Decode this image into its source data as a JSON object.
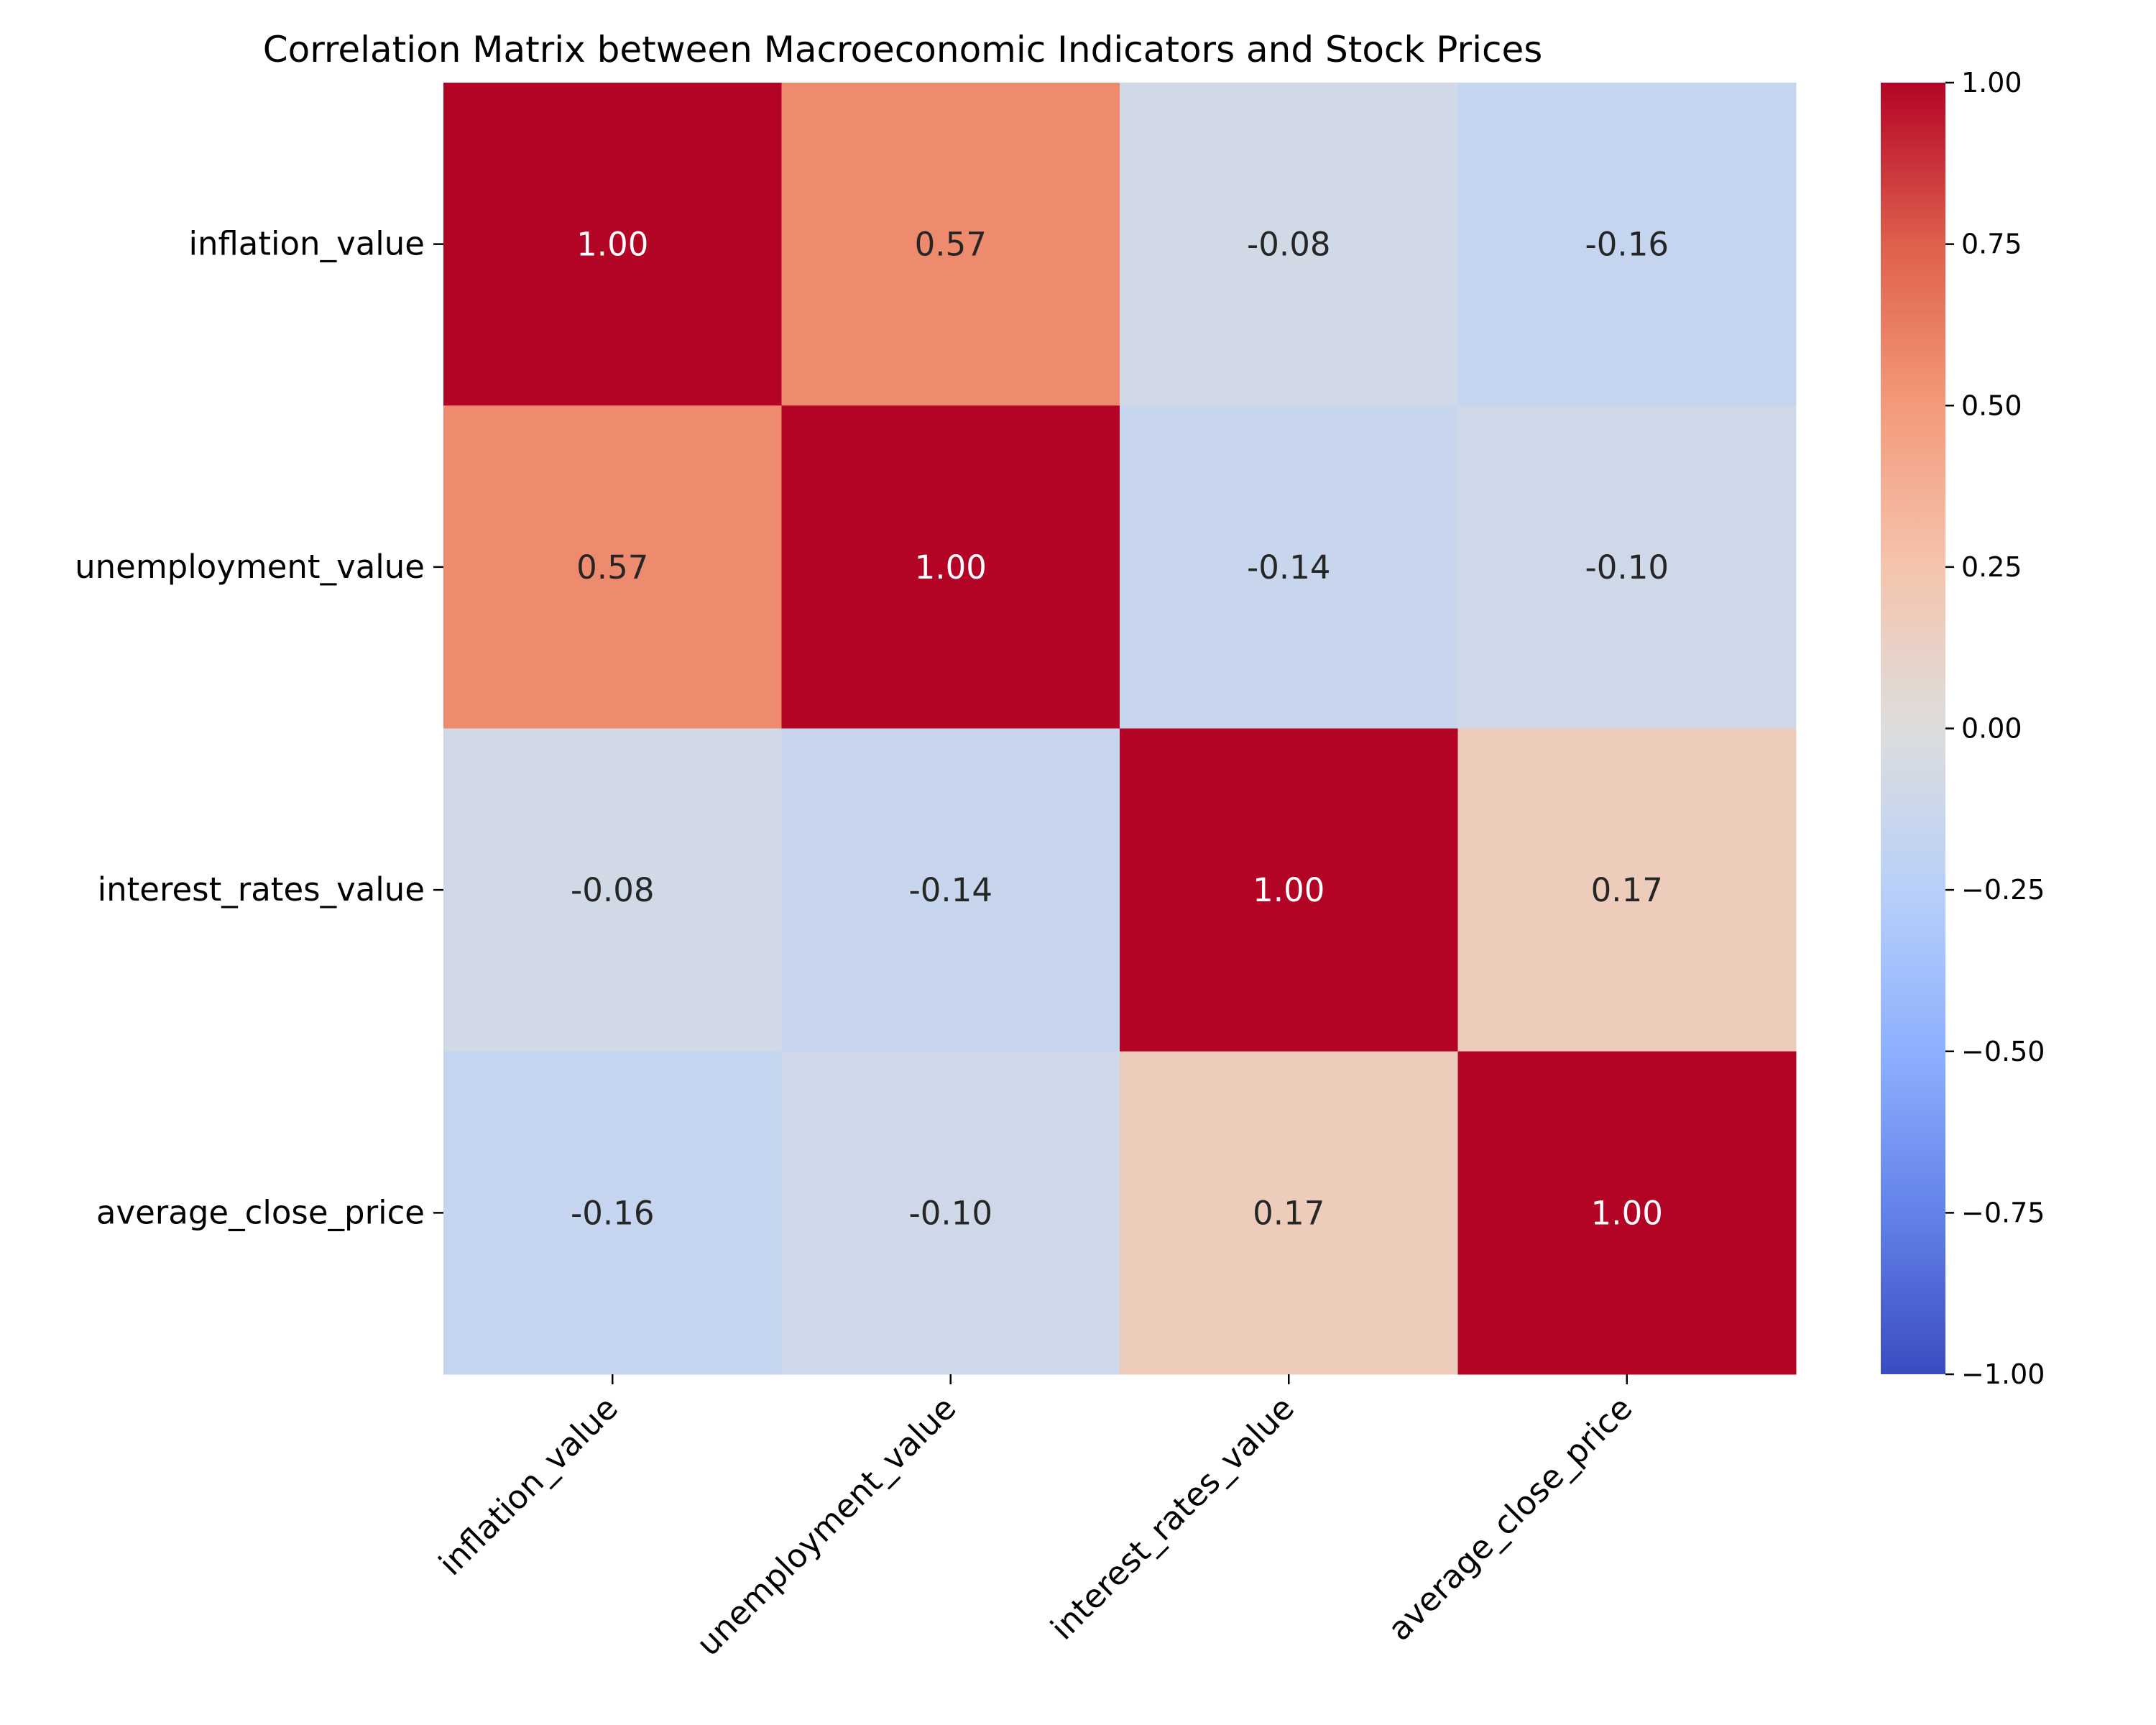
{
  "chart_data": {
    "type": "heatmap",
    "title": "Correlation Matrix between Macroeconomic Indicators and Stock Prices",
    "rows": [
      "inflation_value",
      "unemployment_value",
      "interest_rates_value",
      "average_close_price"
    ],
    "cols": [
      "inflation_value",
      "unemployment_value",
      "interest_rates_value",
      "average_close_price"
    ],
    "values": [
      [
        1.0,
        0.57,
        -0.08,
        -0.16
      ],
      [
        0.57,
        1.0,
        -0.14,
        -0.1
      ],
      [
        -0.08,
        -0.14,
        1.0,
        0.17
      ],
      [
        -0.16,
        -0.1,
        0.17,
        1.0
      ]
    ],
    "labels": [
      [
        "1.00",
        "0.57",
        "-0.08",
        "-0.16"
      ],
      [
        "0.57",
        "1.00",
        "-0.14",
        "-0.10"
      ],
      [
        "-0.08",
        "-0.14",
        "1.00",
        "0.17"
      ],
      [
        "-0.16",
        "-0.10",
        "0.17",
        "1.00"
      ]
    ],
    "colormap": "coolwarm",
    "vmin": -1.0,
    "vmax": 1.0,
    "colorbar_ticks": [
      1.0,
      0.75,
      0.5,
      0.25,
      0.0,
      -0.25,
      -0.5,
      -0.75,
      -1.0
    ],
    "colorbar_tick_labels": [
      "1.00",
      "0.75",
      "0.50",
      "0.25",
      "0.00",
      "−0.25",
      "−0.50",
      "−0.75",
      "−1.00"
    ]
  }
}
